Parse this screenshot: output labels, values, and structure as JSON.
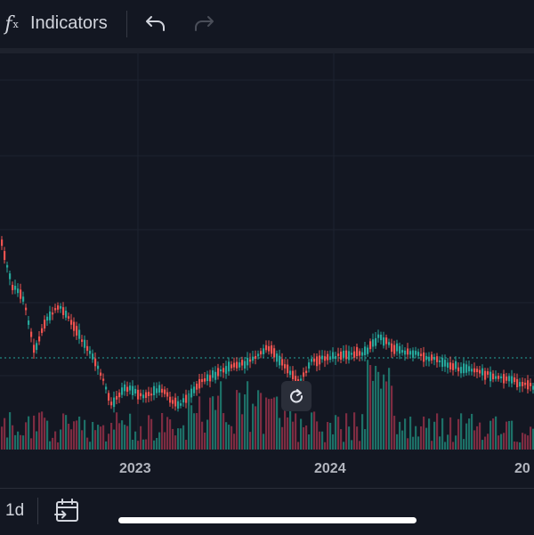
{
  "toolbar": {
    "indicators_label": "Indicators",
    "icons": [
      "fx-icon",
      "undo-icon",
      "redo-icon"
    ]
  },
  "time_axis": {
    "labels": [
      "2023",
      "2024",
      "20"
    ]
  },
  "bottom_bar": {
    "interval": "1d",
    "icons": [
      "goto-date-icon"
    ]
  },
  "colors": {
    "background": "#131722",
    "up": "#26a69a",
    "down": "#ef5350",
    "grid": "#1e2330",
    "price_line": "#26a69a"
  },
  "chart_data": {
    "type": "candlestick",
    "x_axis": "time",
    "x_ticks": [
      "2023",
      "2024",
      "20"
    ],
    "grid": true,
    "price_line": true,
    "volume_pane": true,
    "note": "price path shape only; no price scale visible"
  }
}
